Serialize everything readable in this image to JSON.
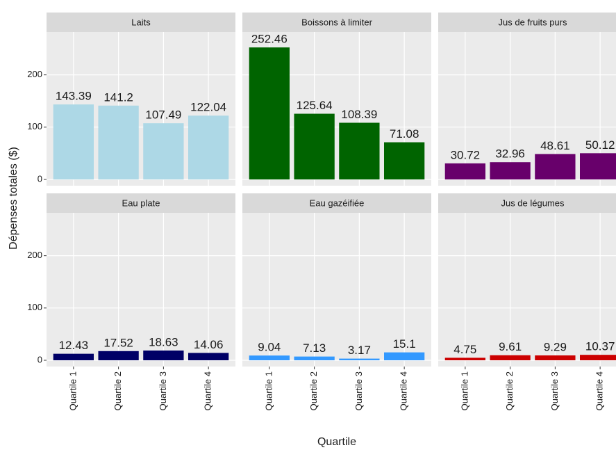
{
  "chart_data": {
    "type": "bar",
    "x_label": "Quartile",
    "y_label": "Dépenses totales ($)",
    "categories": [
      "Quartile 1",
      "Quartile 2",
      "Quartile 3",
      "Quartile 4"
    ],
    "ylim": [
      -12,
      282
    ],
    "yticks": [
      0,
      100,
      200
    ],
    "grid": true,
    "panels": [
      {
        "title": "Laits",
        "color": "#add8e6",
        "values": [
          143.39,
          141.2,
          107.49,
          122.04
        ]
      },
      {
        "title": "Boissons à limiter",
        "color": "#006400",
        "values": [
          252.46,
          125.64,
          108.39,
          71.08
        ]
      },
      {
        "title": "Jus de fruits purs",
        "color": "#68006b",
        "values": [
          30.72,
          32.96,
          48.61,
          50.12
        ]
      },
      {
        "title": "Eau plate",
        "color": "#000066",
        "values": [
          12.43,
          17.52,
          18.63,
          14.06
        ]
      },
      {
        "title": "Eau gazéifiée",
        "color": "#3399ff",
        "values": [
          9.04,
          7.13,
          3.17,
          15.1
        ]
      },
      {
        "title": "Jus de légumes",
        "color": "#cc0000",
        "values": [
          4.75,
          9.61,
          9.29,
          10.37
        ]
      }
    ]
  }
}
